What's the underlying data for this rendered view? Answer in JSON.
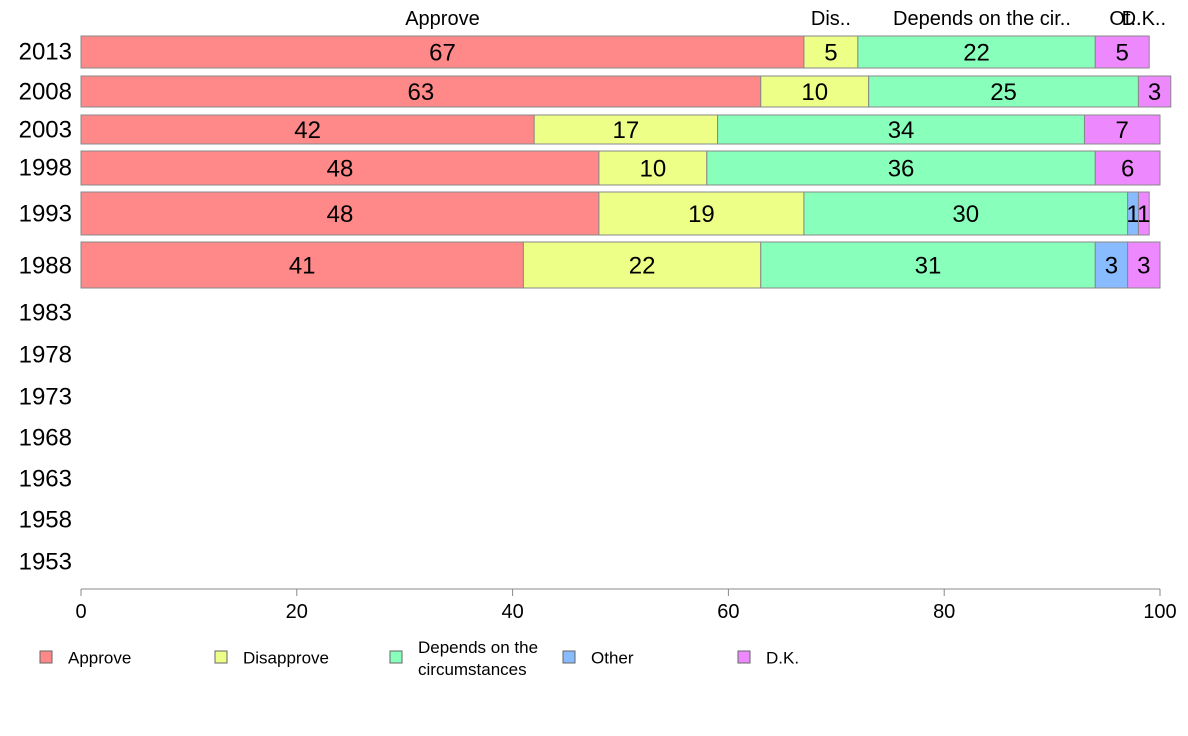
{
  "chart_data": {
    "type": "bar",
    "orientation": "horizontal",
    "stacked": true,
    "categories": [
      "2013",
      "2008",
      "2003",
      "1998",
      "1993",
      "1988",
      "1983",
      "1978",
      "1973",
      "1968",
      "1963",
      "1958",
      "1953"
    ],
    "series": [
      {
        "name": "Approve",
        "color": "#FF8888",
        "values": [
          67,
          63,
          42,
          48,
          48,
          41,
          null,
          null,
          null,
          null,
          null,
          null,
          null
        ]
      },
      {
        "name": "Disapprove",
        "color": "#EEFF88",
        "values": [
          5,
          10,
          17,
          10,
          19,
          22,
          null,
          null,
          null,
          null,
          null,
          null,
          null
        ]
      },
      {
        "name": "Depends on the circumstances",
        "color": "#88FFBB",
        "values": [
          22,
          25,
          34,
          36,
          30,
          31,
          null,
          null,
          null,
          null,
          null,
          null,
          null
        ]
      },
      {
        "name": "Other",
        "color": "#88BBFF",
        "values": [
          0,
          0,
          0,
          0,
          1,
          3,
          null,
          null,
          null,
          null,
          null,
          null,
          null
        ]
      },
      {
        "name": "D.K.",
        "color": "#EE88FF",
        "values": [
          5,
          3,
          7,
          6,
          1,
          3,
          null,
          null,
          null,
          null,
          null,
          null,
          null
        ]
      }
    ],
    "top_labels": [
      "Approve",
      "Dis..",
      "Depends on the cir..",
      "Ot..",
      "D.K.."
    ],
    "legend_labels": [
      "Approve",
      "Disapprove",
      "Depends on the circumstances",
      "Other",
      "D.K."
    ],
    "xlim": [
      0,
      100
    ],
    "xticks": [
      0,
      20,
      40,
      60,
      80,
      100
    ],
    "grid": false,
    "legend_position": "bottom"
  }
}
